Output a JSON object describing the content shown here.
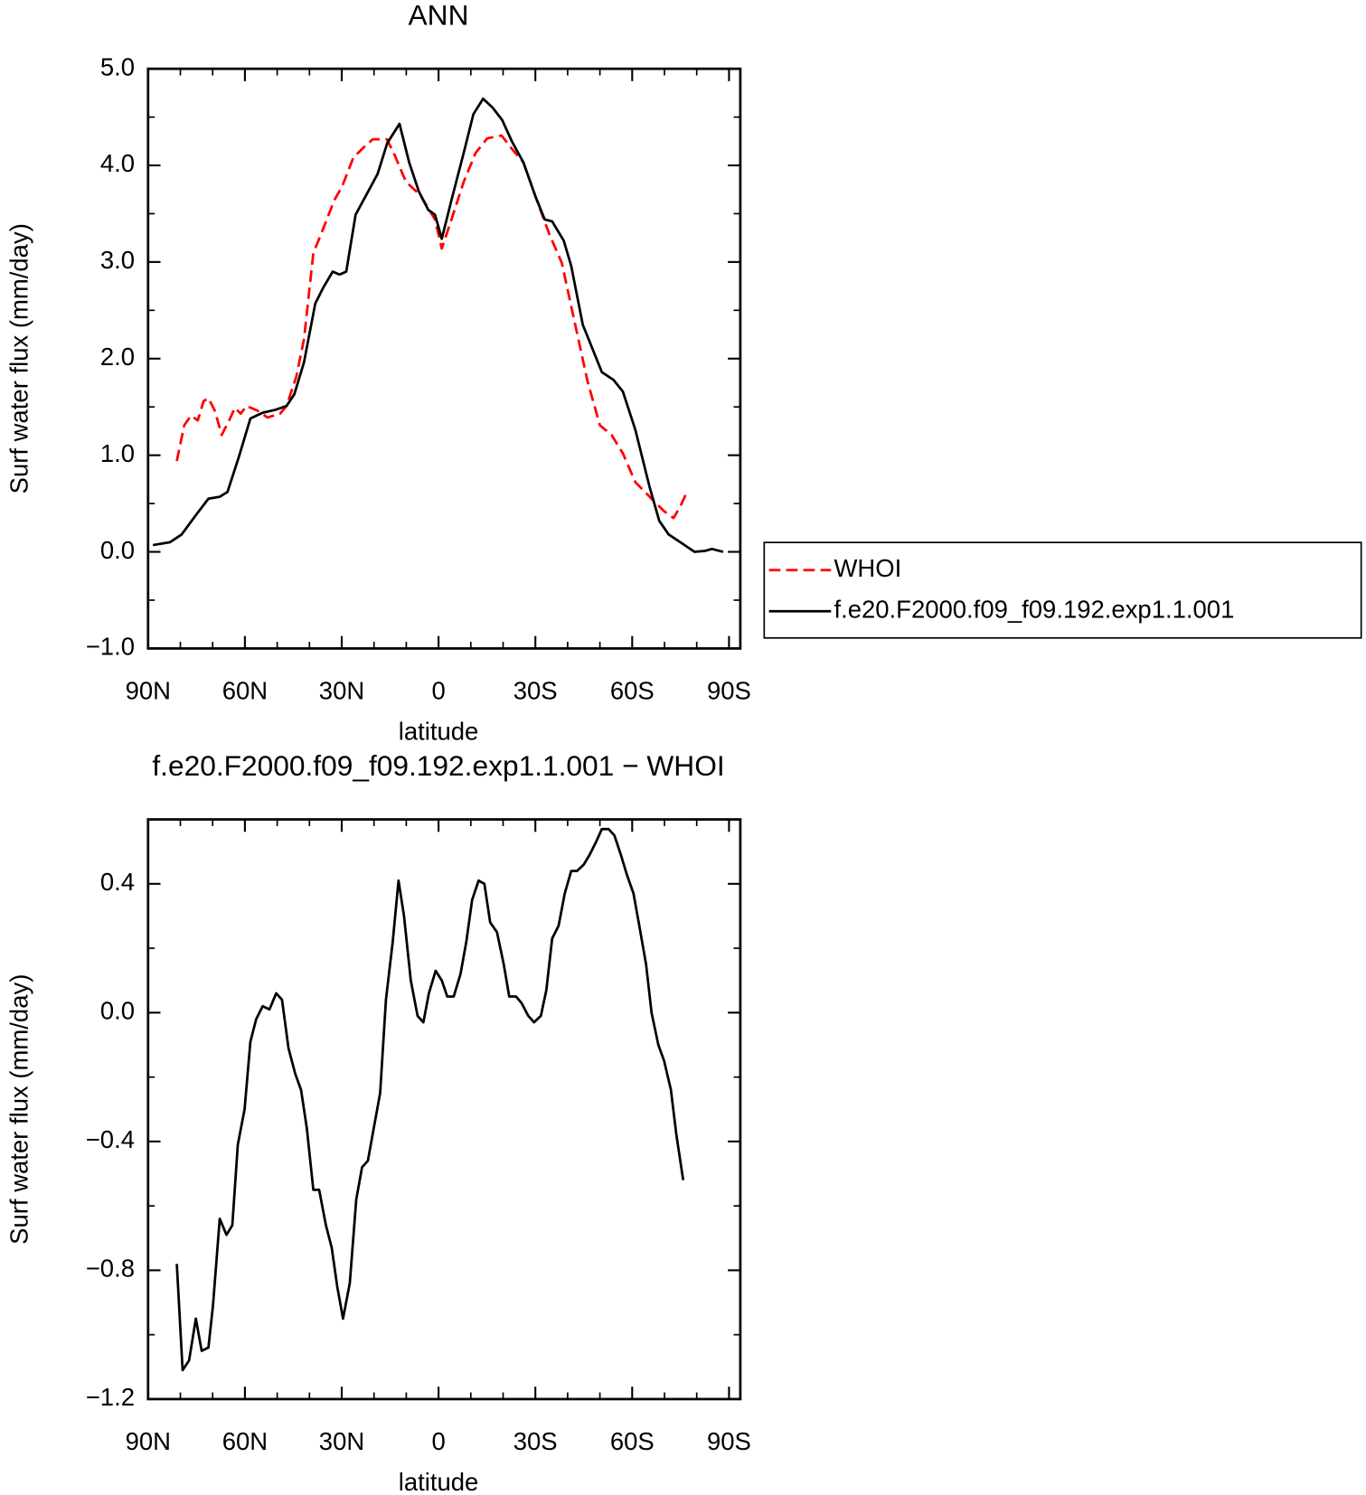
{
  "chart_data": [
    {
      "type": "line",
      "title": "ANN",
      "xlabel": "latitude",
      "ylabel": "Surf water flux (mm/day)",
      "xlim": [
        90,
        -93.5
      ],
      "ylim": [
        -1,
        5
      ],
      "xticks": [
        {
          "value": 90,
          "label": "90N"
        },
        {
          "value": 60,
          "label": "60N"
        },
        {
          "value": 30,
          "label": "30N"
        },
        0,
        {
          "value": -30,
          "label": "30S"
        },
        {
          "value": -60,
          "label": "60S"
        },
        {
          "value": -90,
          "label": "90S"
        }
      ],
      "xminor_ticks": [
        80,
        70,
        50,
        40,
        20,
        10,
        -10,
        -20,
        -40,
        -50,
        -70,
        -80
      ],
      "yticks": [
        {
          "value": 5,
          "label": "5.0"
        },
        {
          "value": 4,
          "label": "4.0"
        },
        {
          "value": 3,
          "label": "3.0"
        },
        {
          "value": 2,
          "label": "2.0"
        },
        {
          "value": 1,
          "label": "1.0"
        },
        {
          "value": 0,
          "label": "0.0"
        },
        {
          "value": -1,
          "label": "−1.0"
        }
      ],
      "yminor_ticks": [
        4.5,
        3.5,
        2.5,
        1.5,
        0.5,
        -0.5
      ],
      "legend": "right",
      "series": [
        {
          "name": "WHOI",
          "color": "#ff0000",
          "style": "dashed",
          "x": [
            81.1,
            78.8,
            76.7,
            74.6,
            72.8,
            71.3,
            69.3,
            67.2,
            64.9,
            63.1,
            61.3,
            59.5,
            56.0,
            53.0,
            49.1,
            47.1,
            44.1,
            41.7,
            38.8,
            35.8,
            32.3,
            29.9,
            26.4,
            23.4,
            20.4,
            16.0,
            13.9,
            10.1,
            5.6,
            1.1,
            -1.0,
            -4.0,
            -7.8,
            -11.5,
            -15.1,
            -19.5,
            -22.5,
            -26.3,
            -29.9,
            -34.3,
            -38.2,
            -41.7,
            -46.2,
            -50.0,
            -53.6,
            -57.1,
            -61.0,
            -66.0,
            -69.9,
            -72.8,
            -74.9,
            -76.7
          ],
          "values": [
            0.94,
            1.31,
            1.41,
            1.36,
            1.56,
            1.59,
            1.46,
            1.21,
            1.36,
            1.49,
            1.43,
            1.51,
            1.46,
            1.39,
            1.43,
            1.51,
            1.81,
            2.2,
            3.09,
            3.34,
            3.64,
            3.78,
            4.08,
            4.18,
            4.27,
            4.27,
            4.13,
            3.83,
            3.69,
            3.44,
            3.14,
            3.44,
            3.83,
            4.13,
            4.28,
            4.31,
            4.18,
            4.03,
            3.69,
            3.29,
            2.99,
            2.45,
            1.76,
            1.31,
            1.21,
            1.02,
            0.72,
            0.55,
            0.42,
            0.35,
            0.47,
            0.6
          ]
        },
        {
          "name": "f.e20.F2000.f09_f09.192.exp1.1.001",
          "color": "#000000",
          "style": "solid",
          "x": [
            88.5,
            83.2,
            79.6,
            75.2,
            71.3,
            67.8,
            65.4,
            61.9,
            58.3,
            54.5,
            50.6,
            47.1,
            44.7,
            41.7,
            38.2,
            35.8,
            32.8,
            30.7,
            28.6,
            25.7,
            21.8,
            18.9,
            15.9,
            12.1,
            9.1,
            6.1,
            3.2,
            1.1,
            -1.0,
            -4.0,
            -7.8,
            -10.8,
            -13.8,
            -16.7,
            -19.7,
            -22.7,
            -26.3,
            -29.9,
            -32.9,
            -35.2,
            -38.8,
            -41.1,
            -44.7,
            -48.2,
            -50.6,
            -54.2,
            -57.1,
            -61.0,
            -65.4,
            -68.4,
            -71.3,
            -75.8,
            -79.3,
            -82.6,
            -84.7,
            -88.2
          ],
          "values": [
            0.07,
            0.1,
            0.18,
            0.38,
            0.55,
            0.57,
            0.62,
            0.98,
            1.38,
            1.44,
            1.47,
            1.51,
            1.63,
            1.96,
            2.57,
            2.73,
            2.9,
            2.87,
            2.9,
            3.49,
            3.73,
            3.91,
            4.23,
            4.43,
            4.03,
            3.73,
            3.54,
            3.49,
            3.24,
            3.64,
            4.13,
            4.53,
            4.69,
            4.6,
            4.47,
            4.25,
            4.03,
            3.69,
            3.44,
            3.42,
            3.22,
            2.96,
            2.35,
            2.06,
            1.86,
            1.78,
            1.66,
            1.26,
            0.67,
            0.32,
            0.18,
            0.08,
            0.0,
            0.01,
            0.03,
            0.0
          ]
        }
      ]
    },
    {
      "type": "line",
      "title": "f.e20.F2000.f09_f09.192.exp1.1.001 − WHOI",
      "xlabel": "latitude",
      "ylabel": "Surf water flux (mm/day)",
      "xlim": [
        90,
        -93.5
      ],
      "ylim": [
        -1.2,
        0.6
      ],
      "xticks": [
        {
          "value": 90,
          "label": "90N"
        },
        {
          "value": 60,
          "label": "60N"
        },
        {
          "value": 30,
          "label": "30N"
        },
        0,
        {
          "value": -30,
          "label": "30S"
        },
        {
          "value": -60,
          "label": "60S"
        },
        {
          "value": -90,
          "label": "90S"
        }
      ],
      "xminor_ticks": [
        80,
        70,
        50,
        40,
        20,
        10,
        -10,
        -20,
        -40,
        -50,
        -70,
        -80
      ],
      "yticks": [
        {
          "value": 0.4,
          "label": "0.4"
        },
        {
          "value": 0,
          "label": "0.0"
        },
        {
          "value": -0.4,
          "label": "−0.4"
        },
        {
          "value": -0.8,
          "label": "−0.8"
        },
        {
          "value": -1.2,
          "label": "−1.2"
        }
      ],
      "yminor_ticks": [
        0.2,
        -0.2,
        -0.6,
        -1.0
      ],
      "series": [
        {
          "color": "#000000",
          "style": "solid",
          "x": [
            81.1,
            79.3,
            77.3,
            75.2,
            73.4,
            71.3,
            69.9,
            67.8,
            65.7,
            63.9,
            62.2,
            60.1,
            58.3,
            56.5,
            54.5,
            52.4,
            50.3,
            48.5,
            46.5,
            44.4,
            42.6,
            40.8,
            38.8,
            37.0,
            34.9,
            33.1,
            31.4,
            29.6,
            27.5,
            25.5,
            23.7,
            21.9,
            20.1,
            18.1,
            16.3,
            14.2,
            12.4,
            10.7,
            8.6,
            6.5,
            4.7,
            3.0,
            0.9,
            -1.0,
            -2.7,
            -4.7,
            -6.8,
            -8.6,
            -10.4,
            -12.4,
            -14.2,
            -16.0,
            -18.1,
            -20.2,
            -21.9,
            -24.0,
            -25.7,
            -27.8,
            -29.6,
            -31.7,
            -33.4,
            -35.2,
            -37.2,
            -39.1,
            -41.1,
            -42.9,
            -45.0,
            -46.8,
            -48.8,
            -50.6,
            -52.7,
            -54.5,
            -56.5,
            -58.3,
            -60.4,
            -62.2,
            -64.3,
            -66.0,
            -68.1,
            -69.9,
            -72.0,
            -73.7,
            -75.8
          ],
          "values": [
            -0.78,
            -1.11,
            -1.08,
            -0.95,
            -1.05,
            -1.04,
            -0.91,
            -0.64,
            -0.69,
            -0.66,
            -0.41,
            -0.3,
            -0.09,
            -0.02,
            0.02,
            0.01,
            0.06,
            0.04,
            -0.11,
            -0.19,
            -0.24,
            -0.36,
            -0.55,
            -0.55,
            -0.66,
            -0.73,
            -0.85,
            -0.95,
            -0.84,
            -0.58,
            -0.48,
            -0.46,
            -0.36,
            -0.25,
            0.04,
            0.22,
            0.41,
            0.3,
            0.1,
            -0.01,
            -0.03,
            0.06,
            0.13,
            0.1,
            0.05,
            0.05,
            0.12,
            0.22,
            0.35,
            0.41,
            0.4,
            0.28,
            0.25,
            0.15,
            0.05,
            0.05,
            0.03,
            -0.01,
            -0.03,
            -0.01,
            0.07,
            0.23,
            0.27,
            0.37,
            0.44,
            0.44,
            0.46,
            0.49,
            0.53,
            0.57,
            0.57,
            0.55,
            0.49,
            0.43,
            0.37,
            0.27,
            0.15,
            0.0,
            -0.1,
            -0.15,
            -0.24,
            -0.38,
            -0.52
          ]
        }
      ]
    }
  ]
}
